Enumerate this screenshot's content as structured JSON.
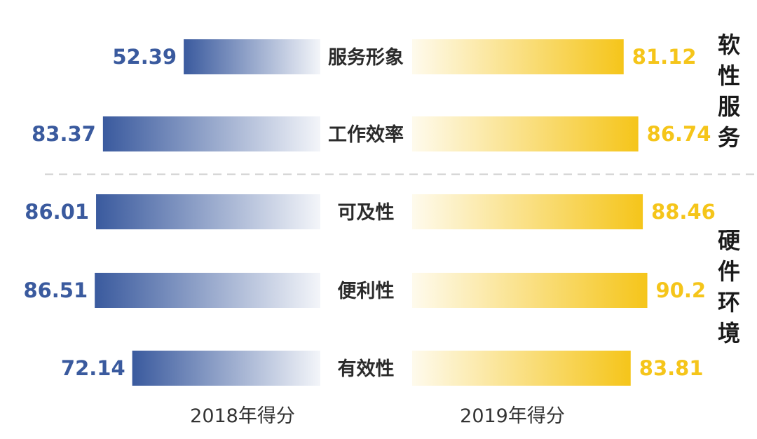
{
  "chart_data": {
    "type": "bar",
    "orientation": "horizontal-butterfly",
    "categories": [
      "服务形象",
      "工作效率",
      "可及性",
      "便利性",
      "有效性"
    ],
    "series": [
      {
        "name": "2018年得分",
        "values": [
          52.39,
          83.37,
          86.01,
          86.51,
          72.14
        ],
        "color": "#3a5a9e"
      },
      {
        "name": "2019年得分",
        "values": [
          81.12,
          86.74,
          88.46,
          90.2,
          83.81
        ],
        "color": "#f5c51a"
      }
    ],
    "value_labels_left": [
      "52.39",
      "83.37",
      "86.01",
      "86.51",
      "72.14"
    ],
    "value_labels_right": [
      "81.12",
      "86.74",
      "88.46",
      "90.2",
      "83.81"
    ],
    "groups": [
      {
        "label": "软性服务",
        "rows": [
          0,
          1
        ]
      },
      {
        "label": "硬件环境",
        "rows": [
          2,
          3,
          4
        ]
      }
    ],
    "divider_after_row": 1,
    "divider_style": "dashed",
    "legend_placement": "bottom"
  }
}
